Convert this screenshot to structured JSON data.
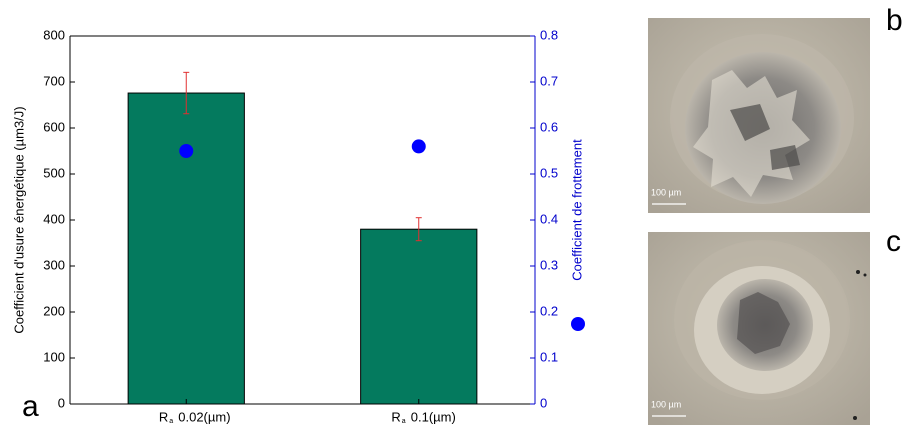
{
  "chart_data": {
    "type": "bar",
    "categories": [
      "0.02(µm)",
      "0.1(µm)"
    ],
    "category_symbol": "R",
    "category_subscript": "a",
    "ylabel": "Coefficient d'usure énergétique (µm3/J)",
    "ylim": [
      0,
      800
    ],
    "yticks": [
      0,
      100,
      200,
      300,
      400,
      500,
      600,
      700,
      800
    ],
    "y2lim": [
      0,
      0.8
    ],
    "y2ticks": [
      0,
      0.1,
      0.2,
      0.3,
      0.4,
      0.5,
      0.6,
      0.7,
      0.8
    ],
    "y2color": "#0000cc",
    "series": [
      {
        "type": "bar",
        "color": "#047a5e",
        "values": [
          676,
          380
        ],
        "errors": [
          45,
          25
        ],
        "error_color": "#e03030"
      },
      {
        "type": "scatter",
        "name": "Coefficient de frottement",
        "axis": "y2",
        "color": "#0000ff",
        "values": [
          0.55,
          0.56
        ]
      }
    ]
  },
  "panels": {
    "a": "a",
    "b": "b",
    "c": "c"
  },
  "images": [
    {
      "scale_bar": "100 µm"
    },
    {
      "scale_bar": "100 µm"
    }
  ]
}
